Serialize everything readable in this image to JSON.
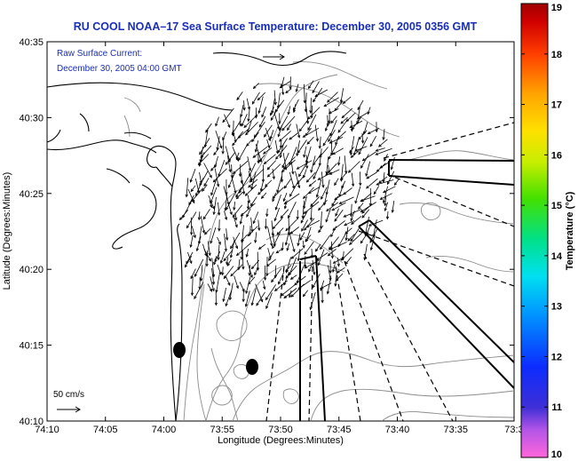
{
  "title": "RU COOL   NOAA–17  Sea Surface Temperature:  December 30, 2005 0356 GMT",
  "current_label": "Raw Surface Current:",
  "current_time": "December 30, 2005 04:00 GMT",
  "scale_label": "50 cm/s",
  "x_axis_label": "Longitude (Degrees:Minutes)",
  "y_axis_label": "Latitude (Degrees:Minutes)",
  "x_ticks": [
    "74:10",
    "74:05",
    "74:00",
    "73:55",
    "73:50",
    "73:45",
    "73:40",
    "73:35",
    "73:3"
  ],
  "y_ticks": [
    "40:35",
    "40:30",
    "40:25",
    "40:20",
    "40:15",
    "40:10"
  ],
  "colorbar": {
    "label": "Temperature (°C)",
    "ticks": [
      "19",
      "18",
      "17",
      "16",
      "15",
      "14",
      "13",
      "12",
      "11",
      "10"
    ],
    "min": 10,
    "max": 19
  },
  "colors": {
    "title": "#1a2fb5",
    "coast": "#000000",
    "contour": "#8c8c8c"
  }
}
